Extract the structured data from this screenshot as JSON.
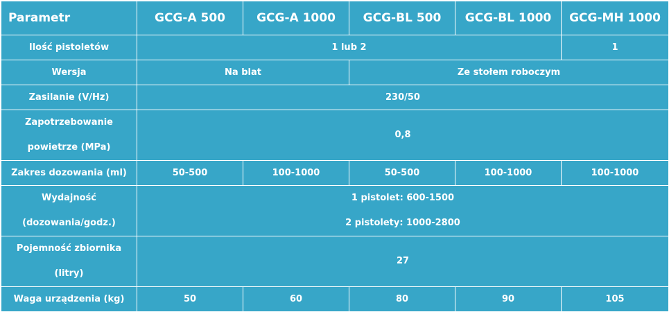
{
  "header": [
    "Parametr",
    "GCG-A 500",
    "GCG-A 1000",
    "GCG-BL 500",
    "GCG-BL 1000",
    "GCG-MH 1000"
  ],
  "rows": {
    "pistols": {
      "label": "Ilość pistoletów",
      "a": "1 lub 2",
      "b": "1"
    },
    "version": {
      "label": "Wersja",
      "a": "Na blat",
      "b": "Ze stołem roboczym"
    },
    "power": {
      "label": "Zasilanie (V/Hz)",
      "value": "230/50"
    },
    "air": {
      "label_1": "Zapotrzebowanie",
      "label_2": "powietrze (MPa)",
      "value": "0,8"
    },
    "dosing": {
      "label": "Zakres dozowania (ml)",
      "values": [
        "50-500",
        "100-1000",
        "50-500",
        "100-1000",
        "100-1000"
      ]
    },
    "output": {
      "label_1": "Wydajność",
      "label_2": "(dozowania/godz.)",
      "value_1": "1 pistolet: 600-1500",
      "value_2": "2 pistolety: 1000-2800"
    },
    "tank": {
      "label_1": "Pojemność zbiornika",
      "label_2": "(litry)",
      "value": "27"
    },
    "weight": {
      "label": "Waga urządzenia (kg)",
      "values": [
        "50",
        "60",
        "80",
        "90",
        "105"
      ]
    }
  }
}
